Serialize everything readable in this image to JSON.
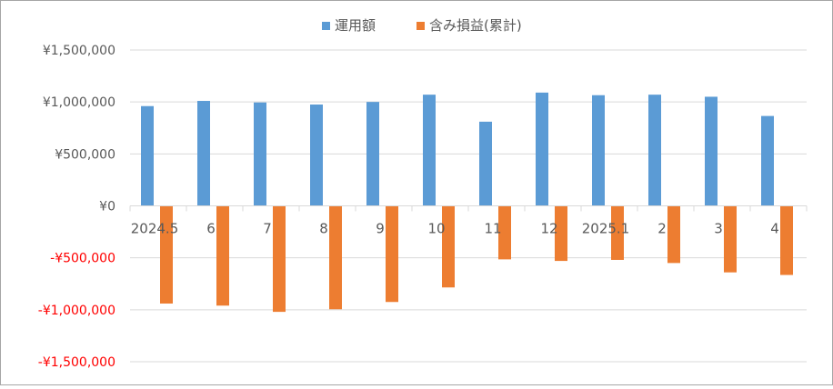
{
  "chart_data": {
    "type": "bar",
    "title": "",
    "xlabel": "",
    "ylabel": "",
    "categories": [
      "2024.5",
      "6",
      "7",
      "8",
      "9",
      "10",
      "11",
      "12",
      "2025.1",
      "2",
      "3",
      "4"
    ],
    "series": [
      {
        "name": "運用額",
        "color": "#5b9bd5",
        "values": [
          960000,
          1010000,
          995000,
          975000,
          1000000,
          1070000,
          810000,
          1090000,
          1065000,
          1070000,
          1050000,
          865000
        ]
      },
      {
        "name": "含み損益(累計)",
        "color": "#ed7d31",
        "values": [
          -940000,
          -960000,
          -1020000,
          -995000,
          -925000,
          -785000,
          -515000,
          -530000,
          -520000,
          -550000,
          -640000,
          -665000
        ]
      }
    ],
    "ylim": [
      -1500000,
      1500000
    ],
    "yticks": [
      1500000,
      1000000,
      500000,
      0,
      -500000,
      -1000000,
      -1500000
    ],
    "ytick_labels": [
      "¥1,500,000",
      "¥1,000,000",
      "¥500,000",
      "¥0",
      "-¥500,000",
      "-¥1,000,000",
      "-¥1,500,000"
    ],
    "negative_tick_color": "#ff0000",
    "positive_tick_color": "#595959",
    "grid": true,
    "legend_position": "top-center"
  }
}
